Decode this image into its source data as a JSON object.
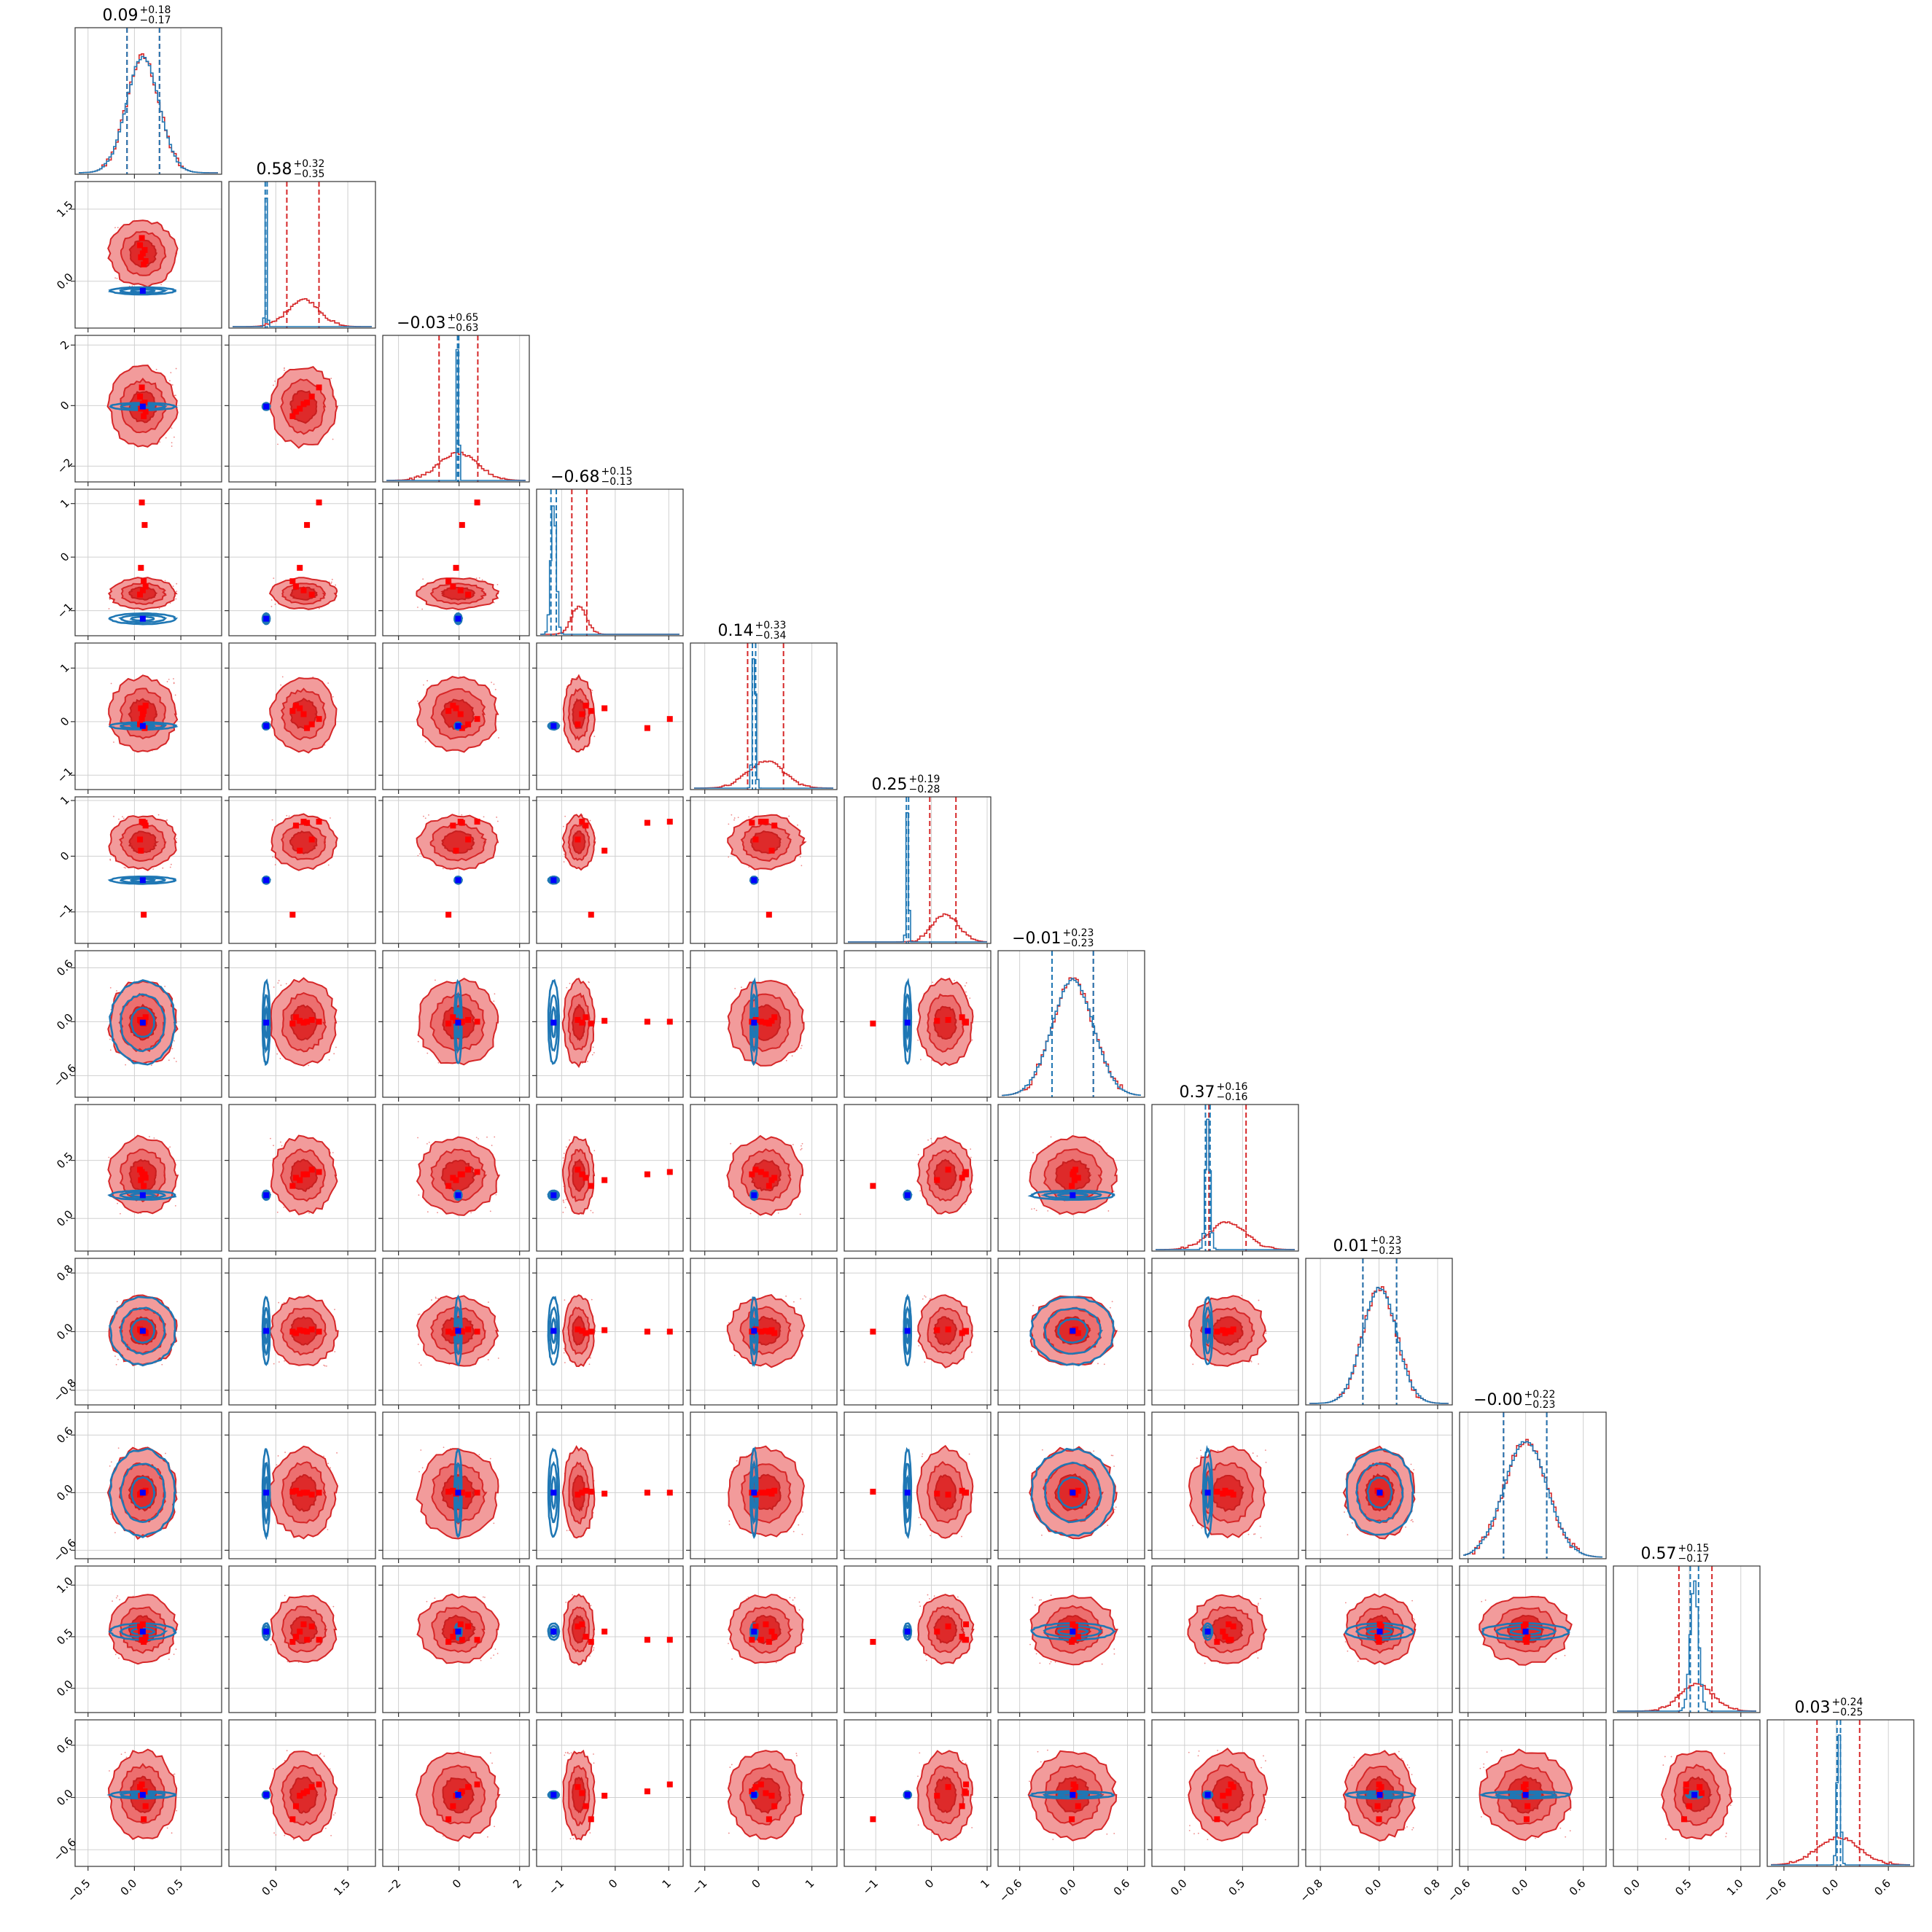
{
  "chart_data": {
    "type": "corner",
    "n_params": 12,
    "grid": true,
    "series": [
      {
        "name": "",
        "color": "#d62728",
        "role": "wide posterior"
      },
      {
        "name": "",
        "color": "#1f77b4",
        "role": "narrow posterior"
      }
    ],
    "marker_colors": {
      "truth": "#0000ff",
      "samples": "#ff0000"
    },
    "titles": [
      {
        "median": "0.09",
        "plus": "+0.18",
        "minus": "−0.17"
      },
      {
        "median": "0.58",
        "plus": "+0.32",
        "minus": "−0.35"
      },
      {
        "median": "−0.03",
        "plus": "+0.65",
        "minus": "−0.63"
      },
      {
        "median": "−0.68",
        "plus": "+0.15",
        "minus": "−0.13"
      },
      {
        "median": "0.14",
        "plus": "+0.33",
        "minus": "−0.34"
      },
      {
        "median": "0.25",
        "plus": "+0.19",
        "minus": "−0.28"
      },
      {
        "median": "−0.01",
        "plus": "+0.23",
        "minus": "−0.23"
      },
      {
        "median": "0.37",
        "plus": "+0.16",
        "minus": "−0.16"
      },
      {
        "median": "0.01",
        "plus": "+0.23",
        "minus": "−0.23"
      },
      {
        "median": "−0.00",
        "plus": "+0.22",
        "minus": "−0.23"
      },
      {
        "median": "0.57",
        "plus": "+0.15",
        "minus": "−0.17"
      },
      {
        "median": "0.03",
        "plus": "+0.24",
        "minus": "−0.25"
      }
    ],
    "ranges": [
      [
        -0.6,
        0.9
      ],
      [
        -0.9,
        2.0
      ],
      [
        -2.4,
        2.2
      ],
      [
        -1.4,
        1.2
      ],
      [
        -1.2,
        1.4
      ],
      [
        -1.5,
        1.0
      ],
      [
        -0.8,
        0.75
      ],
      [
        -0.25,
        0.95
      ],
      [
        -0.95,
        0.95
      ],
      [
        -0.65,
        0.8
      ],
      [
        -0.2,
        1.15
      ],
      [
        -0.75,
        0.85
      ]
    ],
    "ticks": [
      [
        "−0.5",
        "0.0",
        "0.5"
      ],
      [
        "0.0",
        "1.5"
      ],
      [
        "−2",
        "0",
        "2"
      ],
      [
        "−1",
        "0",
        "1"
      ],
      [
        "−1",
        "0",
        "1"
      ],
      [
        "−1",
        "0",
        "1"
      ],
      [
        "−0.6",
        "0.0",
        "0.6"
      ],
      [
        "0.0",
        "0.5"
      ],
      [
        "−0.8",
        "0.0",
        "0.8"
      ],
      [
        "−0.6",
        "0.0",
        "0.6"
      ],
      [
        "0.0",
        "0.5",
        "1.0"
      ],
      [
        "−0.6",
        "0.0",
        "0.6"
      ]
    ],
    "red": {
      "means": [
        0.09,
        0.58,
        -0.03,
        -0.68,
        0.14,
        0.25,
        -0.01,
        0.37,
        0.01,
        0.0,
        0.57,
        0.03
      ],
      "sds": [
        0.175,
        0.33,
        0.64,
        0.14,
        0.335,
        0.235,
        0.23,
        0.16,
        0.23,
        0.225,
        0.16,
        0.245
      ],
      "q_lo": [
        -0.08,
        0.23,
        -0.66,
        -0.81,
        -0.2,
        -0.03,
        -0.24,
        0.21,
        -0.22,
        -0.23,
        0.4,
        -0.22
      ],
      "q_hi": [
        0.27,
        0.9,
        0.62,
        -0.53,
        0.47,
        0.44,
        0.22,
        0.53,
        0.24,
        0.22,
        0.72,
        0.27
      ]
    },
    "blue": {
      "means": [
        0.09,
        -0.2,
        -0.03,
        -1.15,
        -0.08,
        -0.43,
        -0.01,
        0.2,
        0.01,
        0.0,
        0.55,
        0.03
      ],
      "sds": [
        0.175,
        0.02,
        0.02,
        0.05,
        0.03,
        0.02,
        0.23,
        0.02,
        0.23,
        0.225,
        0.04,
        0.02
      ],
      "q_lo": [
        -0.08,
        -0.22,
        -0.05,
        -1.2,
        -0.11,
        -0.45,
        -0.24,
        0.18,
        -0.22,
        -0.23,
        0.51,
        0.01
      ],
      "q_hi": [
        0.27,
        -0.18,
        -0.01,
        -1.1,
        -0.05,
        -0.41,
        0.22,
        0.22,
        0.24,
        0.22,
        0.59,
        0.05
      ]
    },
    "truths": [
      0.09,
      -0.2,
      -0.03,
      -1.15,
      -0.08,
      -0.43,
      -0.01,
      0.2,
      0.01,
      0.0,
      0.55,
      0.03
    ],
    "red_points": [
      [
        0.09,
        0.58,
        0.05,
        -0.62,
        0.14,
        0.62,
        -0.01,
        0.38,
        0.01,
        0.0,
        0.62,
        0.05
      ],
      [
        0.12,
        0.42,
        -0.2,
        -0.55,
        0.3,
        0.55,
        0.05,
        0.35,
        -0.02,
        0.02,
        0.5,
        -0.1
      ],
      [
        0.06,
        0.75,
        0.3,
        -0.7,
        -0.05,
        0.3,
        0.02,
        0.42,
        0.03,
        -0.02,
        0.6,
        0.12
      ],
      [
        0.1,
        0.35,
        -0.35,
        -0.45,
        0.2,
        -1.05,
        -0.02,
        0.28,
        0.0,
        0.01,
        0.45,
        -0.25
      ],
      [
        0.08,
        0.9,
        0.6,
        1.02,
        0.05,
        0.62,
        0.0,
        0.4,
        0.0,
        0.0,
        0.47,
        0.15
      ],
      [
        0.11,
        0.65,
        0.1,
        0.6,
        -0.12,
        0.6,
        0.0,
        0.38,
        0.0,
        0.0,
        0.47,
        0.07
      ],
      [
        0.07,
        0.5,
        -0.1,
        -0.2,
        0.25,
        0.1,
        0.01,
        0.33,
        0.02,
        -0.01,
        0.55,
        0.02
      ]
    ]
  }
}
